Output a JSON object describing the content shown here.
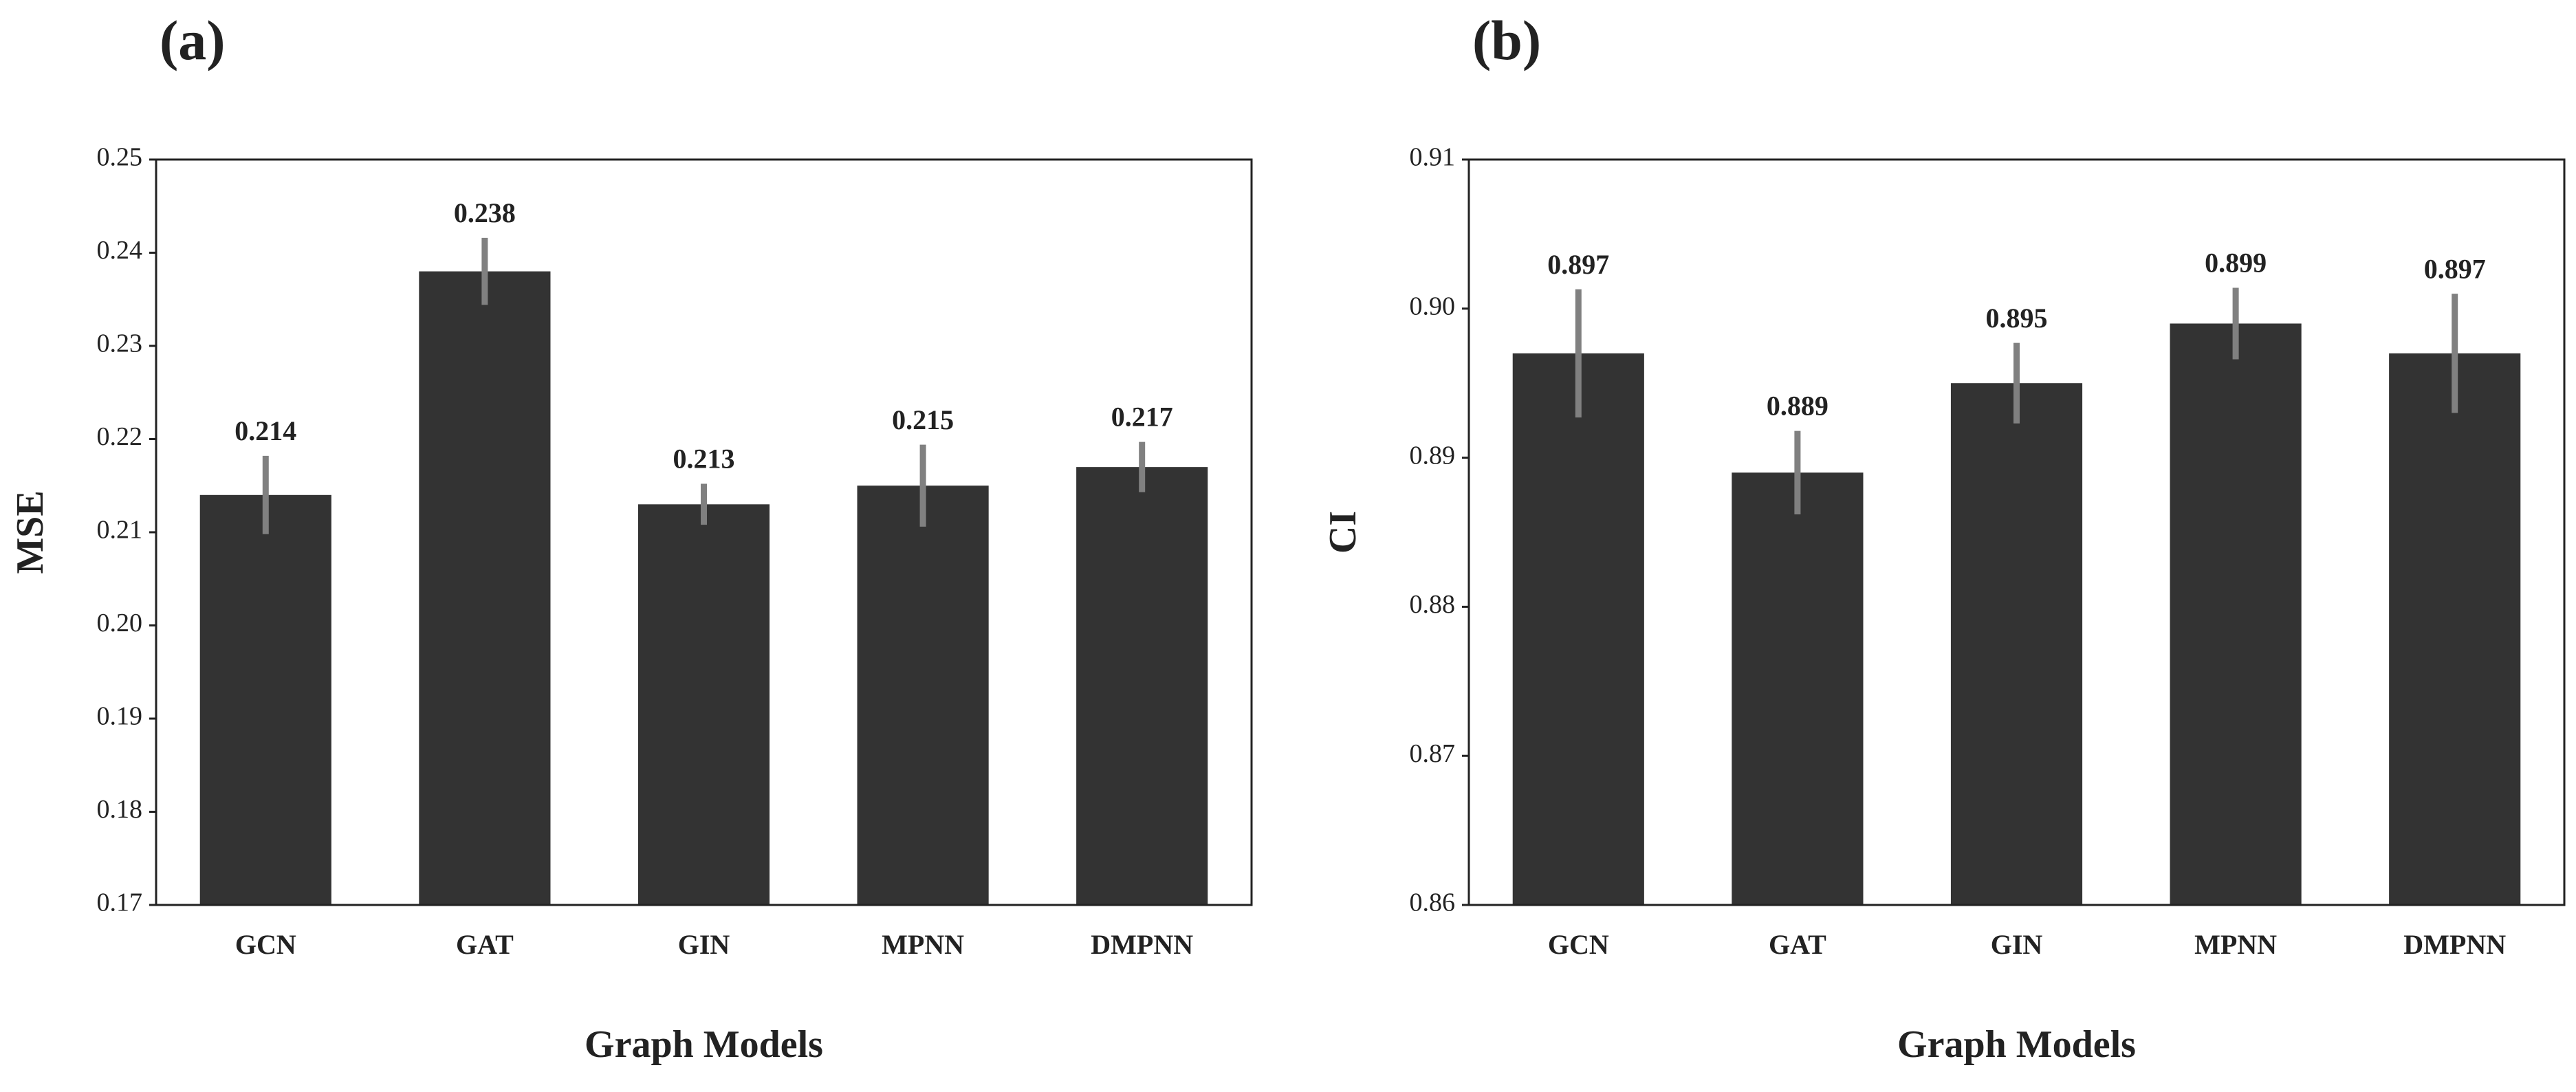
{
  "chart_data": [
    {
      "type": "bar",
      "panel_label": "(a)",
      "ylabel": "MSE",
      "xlabel": "Graph Models",
      "categories": [
        "GCN",
        "GAT",
        "GIN",
        "MPNN",
        "DMPNN"
      ],
      "values": [
        0.214,
        0.238,
        0.213,
        0.215,
        0.217
      ],
      "errors": [
        0.0042,
        0.0036,
        0.0022,
        0.0044,
        0.0027
      ],
      "color": "#333333",
      "error_color": "#808080",
      "ylim": [
        0.17,
        0.25
      ],
      "yticks": [
        0.17,
        0.18,
        0.19,
        {
          "value": 0.2,
          "label": "0.20"
        },
        0.21,
        0.22,
        0.23,
        0.24,
        0.25
      ]
    },
    {
      "type": "bar",
      "panel_label": "(b)",
      "ylabel": "CI",
      "xlabel": "Graph Models",
      "categories": [
        "GCN",
        "GAT",
        "GIN",
        "MPNN",
        "DMPNN"
      ],
      "values": [
        0.897,
        0.889,
        0.895,
        0.899,
        0.897
      ],
      "errors": [
        0.0043,
        0.0028,
        0.0027,
        0.0024,
        0.004
      ],
      "color": "#333333",
      "error_color": "#808080",
      "ylim": [
        0.86,
        0.91
      ],
      "yticks": [
        0.86,
        0.87,
        0.88,
        0.89,
        {
          "value": 0.9,
          "label": "0.90"
        },
        0.91
      ]
    }
  ]
}
